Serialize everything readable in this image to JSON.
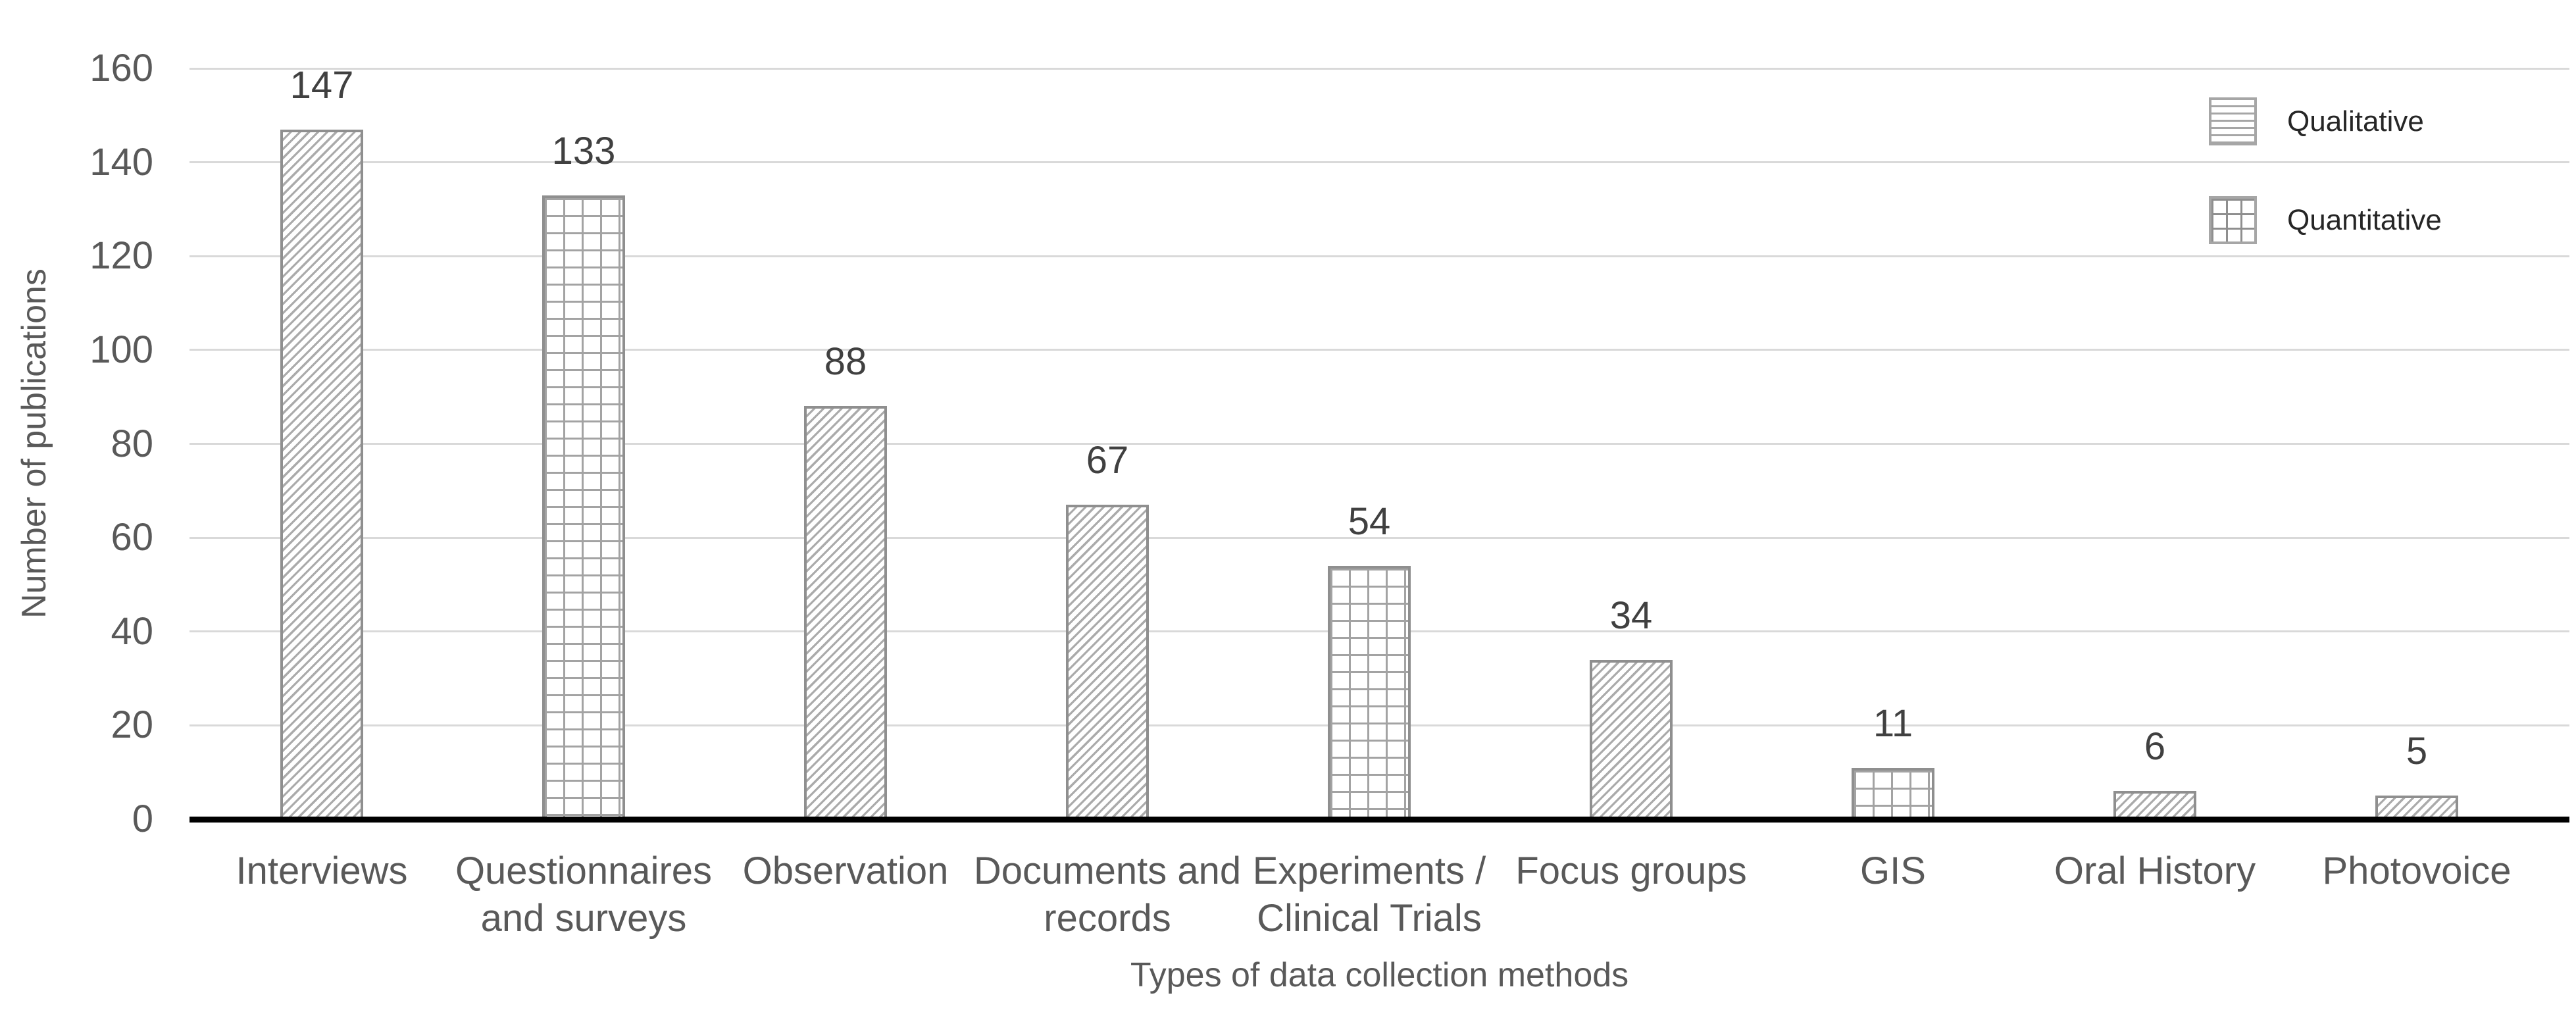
{
  "chart_data": {
    "type": "bar",
    "title": "",
    "xlabel": "Types of data collection methods",
    "ylabel": "Number of publications",
    "categories": [
      "Interviews",
      "Questionnaires\nand surveys",
      "Observation",
      "Documents and\nrecords",
      "Experiments /\nClinical Trials",
      "Focus groups",
      "GIS",
      "Oral History",
      "Photovoice"
    ],
    "values": [
      147,
      133,
      88,
      67,
      54,
      34,
      11,
      6,
      5
    ],
    "series_of": [
      "Qualitative",
      "Quantitative",
      "Qualitative",
      "Qualitative",
      "Quantitative",
      "Qualitative",
      "Quantitative",
      "Qualitative",
      "Qualitative"
    ],
    "series": [
      {
        "name": "Qualitative",
        "bar_pattern": "diagonal-hatch",
        "legend_key_pattern": "horizontal-lines"
      },
      {
        "name": "Quantitative",
        "bar_pattern": "grid-crosshatch",
        "legend_key_pattern": "grid-crosshatch"
      }
    ],
    "ylim": [
      0,
      160
    ],
    "yticks": [
      0,
      20,
      40,
      60,
      80,
      100,
      120,
      140,
      160
    ],
    "grid": "horizontal-only",
    "legend_position": "top-right"
  },
  "colors": {
    "background": "#ffffff",
    "axis_line": "#000000",
    "gridline": "#d9d9d9",
    "bar_border": "#8f8f8f",
    "hatch_line": "#a6a6a6",
    "tick_label": "#595959",
    "value_label": "#404040",
    "category_label": "#595959",
    "axis_title": "#595959",
    "legend_text": "#262626"
  }
}
